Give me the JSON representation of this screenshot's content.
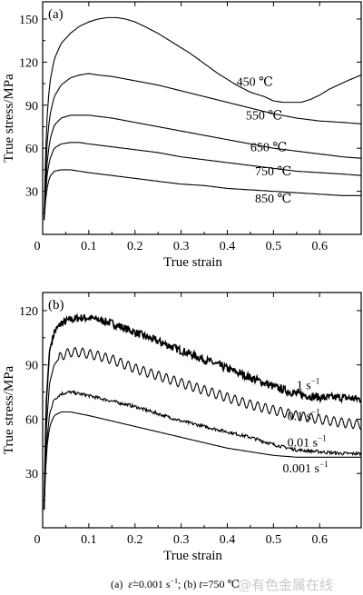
{
  "chart_data": [
    {
      "type": "line",
      "panel_label": "(a)",
      "xlabel": "True strain",
      "ylabel": "True stress/MPa",
      "xlim": [
        0,
        0.69
      ],
      "ylim": [
        0,
        162
      ],
      "xticks": [
        0,
        0.1,
        0.2,
        0.3,
        0.4,
        0.5,
        0.6
      ],
      "xtick_labels": [
        "0",
        "0.1",
        "0.2",
        "0.3",
        "0.4",
        "0.5",
        "0.6"
      ],
      "yticks": [
        30,
        60,
        90,
        120,
        150
      ],
      "ytick_labels": [
        "30",
        "60",
        "90",
        "120",
        "150"
      ],
      "origin_label": "0",
      "grid": false,
      "series": [
        {
          "label": "450 ℃",
          "label_at": [
            0.42,
            103.5
          ],
          "x": [
            0.003,
            0.008,
            0.015,
            0.025,
            0.04,
            0.06,
            0.08,
            0.1,
            0.12,
            0.14,
            0.16,
            0.18,
            0.2,
            0.22,
            0.25,
            0.28,
            0.3,
            0.32,
            0.35,
            0.38,
            0.4,
            0.42,
            0.45,
            0.48,
            0.5,
            0.52,
            0.54,
            0.56,
            0.58,
            0.6,
            0.62,
            0.64,
            0.66,
            0.69
          ],
          "y": [
            10,
            75,
            105,
            122,
            133,
            140,
            145,
            148,
            150,
            151,
            151,
            150,
            148,
            145,
            140,
            134,
            130,
            126,
            119,
            112,
            108,
            104,
            99,
            96,
            93,
            92,
            92,
            92,
            94,
            97,
            101,
            104,
            107,
            111
          ]
        },
        {
          "label": "550 ℃",
          "label_at": [
            0.44,
            80
          ],
          "x": [
            0.003,
            0.008,
            0.015,
            0.025,
            0.04,
            0.06,
            0.08,
            0.1,
            0.12,
            0.15,
            0.2,
            0.25,
            0.3,
            0.35,
            0.4,
            0.45,
            0.5,
            0.55,
            0.6,
            0.65,
            0.69
          ],
          "y": [
            10,
            58,
            82,
            96,
            104,
            109,
            111,
            112,
            111,
            110,
            107,
            104,
            100,
            96,
            92,
            88,
            84,
            81,
            79,
            78,
            77
          ]
        },
        {
          "label": "650 ℃",
          "label_at": [
            0.45,
            58
          ],
          "x": [
            0.003,
            0.008,
            0.015,
            0.025,
            0.04,
            0.06,
            0.08,
            0.1,
            0.15,
            0.2,
            0.25,
            0.3,
            0.35,
            0.4,
            0.45,
            0.5,
            0.55,
            0.6,
            0.65,
            0.69
          ],
          "y": [
            10,
            45,
            65,
            76,
            81,
            83,
            83,
            83,
            81,
            78,
            75,
            72,
            69,
            66,
            63,
            60,
            58,
            56,
            54,
            53
          ]
        },
        {
          "label": "750 ℃",
          "label_at": [
            0.46,
            41
          ],
          "x": [
            0.003,
            0.008,
            0.015,
            0.025,
            0.04,
            0.06,
            0.08,
            0.1,
            0.15,
            0.2,
            0.25,
            0.3,
            0.35,
            0.4,
            0.45,
            0.5,
            0.55,
            0.6,
            0.65,
            0.69
          ],
          "y": [
            10,
            38,
            52,
            60,
            63,
            64,
            64,
            63,
            61,
            59,
            57,
            54,
            52,
            50,
            48,
            46,
            44,
            43,
            42,
            41
          ]
        },
        {
          "label": "850 ℃",
          "label_at": [
            0.46,
            22
          ],
          "x": [
            0.003,
            0.008,
            0.015,
            0.025,
            0.04,
            0.06,
            0.08,
            0.1,
            0.15,
            0.2,
            0.25,
            0.3,
            0.35,
            0.4,
            0.45,
            0.5,
            0.55,
            0.6,
            0.65,
            0.69
          ],
          "y": [
            10,
            30,
            40,
            44,
            45,
            45,
            44,
            43,
            41,
            39,
            37,
            35,
            34,
            32,
            31,
            30,
            29,
            28,
            27,
            27
          ]
        }
      ]
    },
    {
      "type": "line",
      "panel_label": "(b)",
      "xlabel": "True strain",
      "ylabel": "True stress/MPa",
      "xlim": [
        0,
        0.69
      ],
      "ylim": [
        0,
        130
      ],
      "xticks": [
        0,
        0.1,
        0.2,
        0.3,
        0.4,
        0.5,
        0.6
      ],
      "xtick_labels": [
        "0",
        "0.1",
        "0.2",
        "0.3",
        "0.4",
        "0.5",
        "0.6"
      ],
      "yticks": [
        30,
        60,
        90,
        120
      ],
      "ytick_labels": [
        "30",
        "60",
        "90",
        "120"
      ],
      "origin_label": "0",
      "grid": false,
      "series": [
        {
          "label": "1 s⁻¹",
          "label_main": "1 s",
          "label_sup": "−1",
          "label_at": [
            0.55,
            76.5
          ],
          "noise": 2.2,
          "x": [
            0.003,
            0.008,
            0.015,
            0.025,
            0.04,
            0.06,
            0.08,
            0.1,
            0.12,
            0.15,
            0.2,
            0.25,
            0.3,
            0.35,
            0.4,
            0.45,
            0.5,
            0.55,
            0.6,
            0.65,
            0.69
          ],
          "y": [
            10,
            70,
            98,
            108,
            113,
            115,
            116,
            116,
            115,
            113,
            108,
            103,
            98,
            93,
            88,
            83,
            78,
            74,
            72,
            72,
            71
          ]
        },
        {
          "label": "0.1 s⁻¹",
          "label_main": "0.1 s",
          "label_sup": "−1",
          "label_at": [
            0.53,
            59.5
          ],
          "wave_amp": 2.6,
          "wave_period": 0.0165,
          "x": [
            0.003,
            0.008,
            0.015,
            0.025,
            0.04,
            0.06,
            0.08,
            0.1,
            0.12,
            0.15,
            0.2,
            0.25,
            0.3,
            0.35,
            0.4,
            0.45,
            0.5,
            0.55,
            0.6,
            0.65,
            0.69
          ],
          "y": [
            10,
            55,
            80,
            90,
            95,
            97,
            97,
            96,
            95,
            93,
            88,
            84,
            80,
            76,
            72,
            68,
            65,
            62,
            60,
            58,
            57
          ]
        },
        {
          "label": "0.01 s⁻¹",
          "label_main": "0.01 s",
          "label_sup": "−1",
          "label_at": [
            0.53,
            45
          ],
          "noise": 0.9,
          "x": [
            0.003,
            0.008,
            0.015,
            0.025,
            0.04,
            0.06,
            0.08,
            0.1,
            0.15,
            0.2,
            0.25,
            0.3,
            0.35,
            0.4,
            0.45,
            0.5,
            0.55,
            0.6,
            0.65,
            0.69
          ],
          "y": [
            10,
            45,
            63,
            71,
            74,
            75,
            74,
            73,
            70,
            67,
            63,
            59,
            56,
            53,
            50,
            46,
            43,
            42,
            41,
            41
          ]
        },
        {
          "label": "0.001 s⁻¹",
          "label_main": "0.001 s",
          "label_sup": "−1",
          "label_at": [
            0.52,
            30.5
          ],
          "x": [
            0.003,
            0.008,
            0.015,
            0.025,
            0.04,
            0.06,
            0.08,
            0.1,
            0.15,
            0.2,
            0.25,
            0.3,
            0.35,
            0.4,
            0.45,
            0.5,
            0.55,
            0.6,
            0.65,
            0.69
          ],
          "y": [
            10,
            42,
            56,
            62,
            64,
            64,
            63,
            62,
            59,
            56,
            53,
            50,
            47,
            44,
            42,
            40,
            39,
            39,
            39,
            39
          ]
        }
      ]
    }
  ],
  "caption": {
    "part_a_label": "(a)",
    "part_a_symbol": "ε̇",
    "part_a_value": "=0.001 s",
    "part_a_sup": "−1",
    "separator": "; (b)",
    "part_b_symbol": "t",
    "part_b_value": "=750 ℃"
  },
  "watermark": "@有色金属在线"
}
